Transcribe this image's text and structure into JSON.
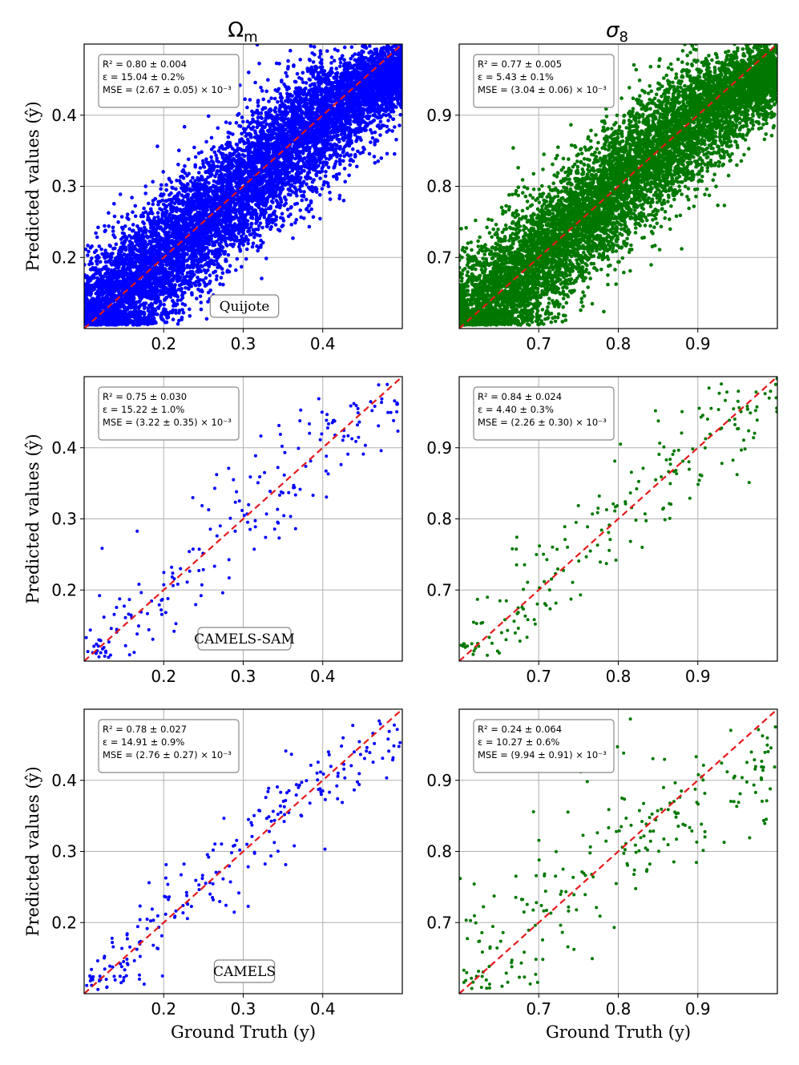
{
  "column_titles": [
    "Ω",
    "σ"
  ],
  "column_subscripts": [
    "m",
    "8"
  ],
  "ylabel": "Predicted values (ŷ)",
  "xlabel": "Ground Truth (y)",
  "chart_data": [
    {
      "type": "scatter",
      "title": "Ωm",
      "dataset": "Quijote",
      "color": "#0000ff",
      "xlim": [
        0.1,
        0.5
      ],
      "ylim": [
        0.1,
        0.5
      ],
      "xticks": [
        "0.2",
        "0.3",
        "0.4"
      ],
      "yticks": [
        "0.2",
        "0.3",
        "0.4"
      ],
      "stats": [
        "R² = 0.80 ± 0.004",
        "ε = 15.04 ± 0.2%",
        "MSE = (2.67 ± 0.05) × 10⁻³"
      ],
      "n": 9000,
      "scatter_sd": 0.045,
      "plateau": 0.43,
      "seed": 11,
      "xlabel": "",
      "ylabel": "Predicted values (ŷ)"
    },
    {
      "type": "scatter",
      "title": "σ8",
      "dataset": "",
      "color": "#007800",
      "xlim": [
        0.6,
        1.0
      ],
      "ylim": [
        0.6,
        1.0
      ],
      "xticks": [
        "0.7",
        "0.8",
        "0.9"
      ],
      "yticks": [
        "0.7",
        "0.8",
        "0.9"
      ],
      "stats": [
        "R² = 0.77 ± 0.005",
        "ε = 5.43 ± 0.1%",
        "MSE = (3.04 ± 0.06) × 10⁻³"
      ],
      "n": 9000,
      "scatter_sd": 0.045,
      "plateau": 0.93,
      "seed": 23,
      "xlabel": "",
      "ylabel": ""
    },
    {
      "type": "scatter",
      "title": "",
      "dataset": "CAMELS-SAM",
      "color": "#0000ff",
      "xlim": [
        0.1,
        0.5
      ],
      "ylim": [
        0.1,
        0.5
      ],
      "xticks": [
        "0.2",
        "0.3",
        "0.4"
      ],
      "yticks": [
        "0.2",
        "0.3",
        "0.4"
      ],
      "stats": [
        "R² = 0.75 ± 0.030",
        "ε = 15.22 ± 1.0%",
        "MSE = (3.22 ± 0.35) × 10⁻³"
      ],
      "n": 200,
      "scatter_sd": 0.045,
      "plateau": 0.42,
      "seed": 37,
      "xlabel": "",
      "ylabel": "Predicted values (ŷ)"
    },
    {
      "type": "scatter",
      "title": "",
      "dataset": "",
      "color": "#007800",
      "xlim": [
        0.6,
        1.0
      ],
      "ylim": [
        0.6,
        1.0
      ],
      "xticks": [
        "0.7",
        "0.8",
        "0.9"
      ],
      "yticks": [
        "0.7",
        "0.8",
        "0.9"
      ],
      "stats": [
        "R² = 0.84 ± 0.024",
        "ε = 4.40 ± 0.3%",
        "MSE = (2.26 ± 0.30) × 10⁻³"
      ],
      "n": 200,
      "scatter_sd": 0.04,
      "plateau": 0.95,
      "seed": 41,
      "xlabel": "",
      "ylabel": ""
    },
    {
      "type": "scatter",
      "title": "",
      "dataset": "CAMELS",
      "color": "#0000ff",
      "xlim": [
        0.1,
        0.5
      ],
      "ylim": [
        0.1,
        0.5
      ],
      "xticks": [
        "0.2",
        "0.3",
        "0.4"
      ],
      "yticks": [
        "0.2",
        "0.3",
        "0.4"
      ],
      "stats": [
        "R² = 0.78 ± 0.027",
        "ε = 14.91 ± 0.9%",
        "MSE = (2.76 ± 0.27) × 10⁻³"
      ],
      "n": 230,
      "scatter_sd": 0.035,
      "plateau": 0.42,
      "seed": 53,
      "xlabel": "Ground Truth (y)",
      "ylabel": "Predicted values (ŷ)"
    },
    {
      "type": "scatter",
      "title": "",
      "dataset": "",
      "color": "#007800",
      "xlim": [
        0.6,
        1.0
      ],
      "ylim": [
        0.6,
        1.0
      ],
      "xticks": [
        "0.7",
        "0.8",
        "0.9"
      ],
      "yticks": [
        "0.7",
        "0.8",
        "0.9"
      ],
      "stats": [
        "R² = 0.24 ± 0.064",
        "ε = 10.27 ± 0.6%",
        "MSE = (9.94 ± 0.91) × 10⁻³"
      ],
      "n": 230,
      "scatter_sd": 0.06,
      "plateau": 0.85,
      "seed": 67,
      "xlabel": "Ground Truth (y)",
      "ylabel": ""
    }
  ]
}
